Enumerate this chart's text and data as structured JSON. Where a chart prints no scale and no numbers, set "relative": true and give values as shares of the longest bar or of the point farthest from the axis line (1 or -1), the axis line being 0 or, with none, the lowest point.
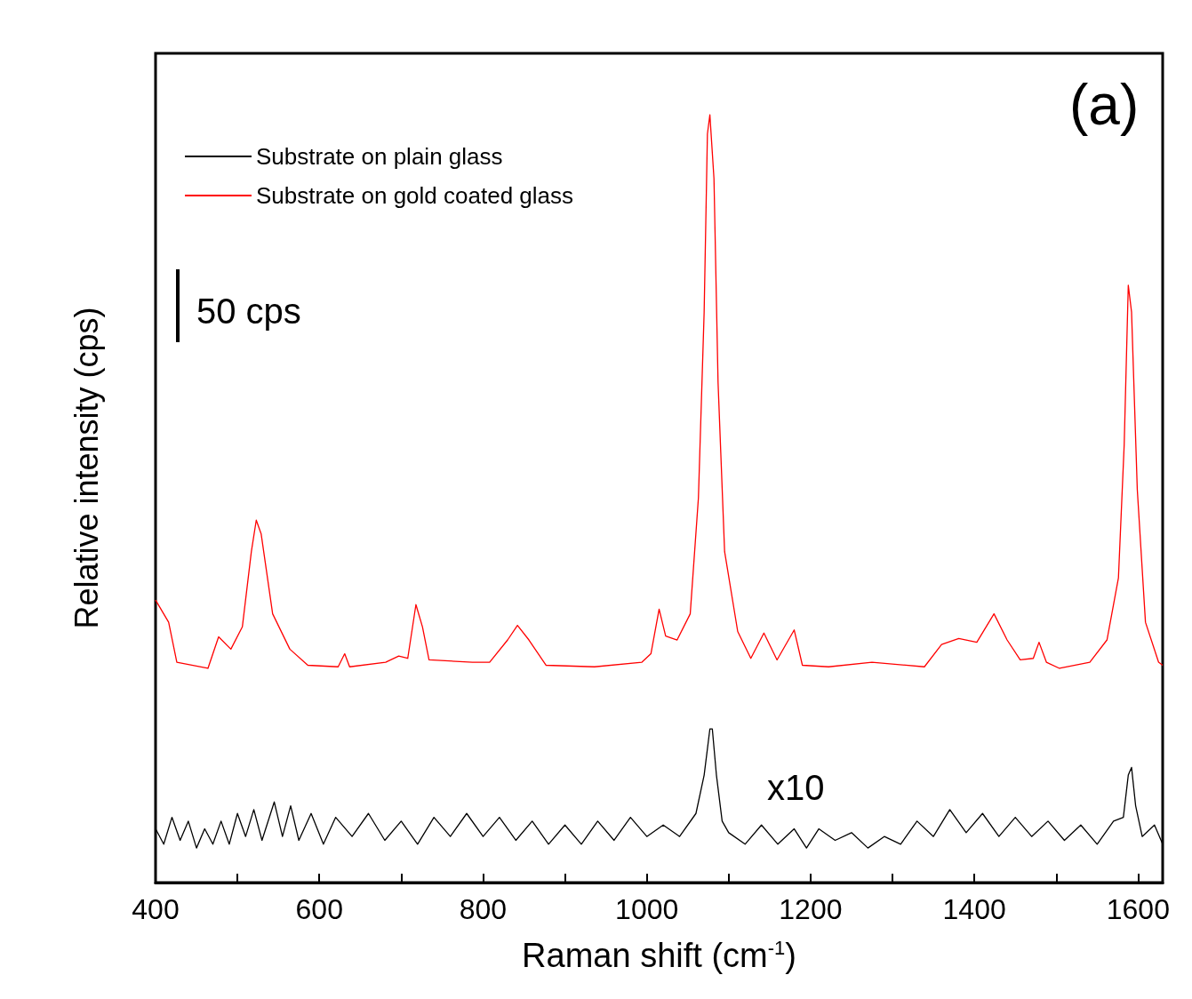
{
  "chart_data": {
    "type": "line",
    "relative": true,
    "xlabel": "Raman shift (cm$^{-1}$)",
    "ylabel": "Relative intensity (cps)",
    "xlim": [
      400,
      1630
    ],
    "xticks": [
      400,
      {
        "value": 500,
        "label": null
      },
      600,
      {
        "value": 700,
        "label": null
      },
      800,
      {
        "value": 900,
        "label": null
      },
      1000,
      {
        "value": 1100,
        "label": null
      },
      1200,
      {
        "value": 1300,
        "label": null
      },
      1400,
      {
        "value": 1500,
        "label": null
      },
      1600
    ],
    "legend": "top left",
    "grid": false,
    "marker": "none",
    "line_style": "solid",
    "annotations": [
      "50 cps",
      "x10",
      "(a)"
    ],
    "series": [
      {
        "name": "Substrate on plain glass",
        "color": "#000000",
        "x": [
          400,
          410,
          420,
          430,
          440,
          450,
          460,
          470,
          480,
          490,
          500,
          510,
          520,
          530,
          545,
          555,
          565,
          575,
          590,
          605,
          620,
          640,
          660,
          680,
          700,
          720,
          740,
          760,
          780,
          800,
          820,
          840,
          860,
          880,
          900,
          920,
          940,
          960,
          980,
          1000,
          1020,
          1040,
          1060,
          1070,
          1077,
          1080,
          1085,
          1092,
          1100,
          1120,
          1140,
          1160,
          1180,
          1195,
          1210,
          1230,
          1250,
          1270,
          1290,
          1310,
          1330,
          1350,
          1370,
          1390,
          1410,
          1430,
          1450,
          1470,
          1490,
          1510,
          1530,
          1550,
          1570,
          1582,
          1588,
          1592,
          1597,
          1605,
          1620,
          1630
        ],
        "values": [
          0.07,
          0.05,
          0.085,
          0.055,
          0.08,
          0.045,
          0.07,
          0.05,
          0.08,
          0.05,
          0.09,
          0.06,
          0.095,
          0.055,
          0.105,
          0.06,
          0.1,
          0.055,
          0.09,
          0.05,
          0.085,
          0.06,
          0.09,
          0.055,
          0.08,
          0.05,
          0.085,
          0.06,
          0.09,
          0.06,
          0.085,
          0.055,
          0.08,
          0.05,
          0.075,
          0.05,
          0.08,
          0.055,
          0.085,
          0.06,
          0.075,
          0.06,
          0.09,
          0.14,
          0.2,
          0.2,
          0.14,
          0.08,
          0.065,
          0.05,
          0.075,
          0.05,
          0.07,
          0.045,
          0.07,
          0.055,
          0.065,
          0.045,
          0.06,
          0.05,
          0.08,
          0.06,
          0.095,
          0.065,
          0.09,
          0.06,
          0.085,
          0.06,
          0.08,
          0.055,
          0.075,
          0.05,
          0.08,
          0.085,
          0.14,
          0.15,
          0.1,
          0.06,
          0.075,
          0.05
        ]
      },
      {
        "name": "Substrate on gold coated glass",
        "color": "#ff0000",
        "x": [
          400,
          416,
          426,
          464,
          477,
          492,
          506,
          517,
          523,
          529,
          543,
          564,
          586,
          623,
          631,
          637,
          681,
          697,
          708,
          718,
          726,
          734,
          787,
          808,
          830,
          842,
          856,
          877,
          936,
          994,
          1005,
          1015,
          1023,
          1037,
          1053,
          1063,
          1070,
          1074,
          1077,
          1082,
          1087,
          1095,
          1111,
          1127,
          1143,
          1159,
          1180,
          1190,
          1222,
          1275,
          1339,
          1360,
          1381,
          1403,
          1424,
          1440,
          1456,
          1472,
          1479,
          1488,
          1504,
          1541,
          1562,
          1576,
          1583,
          1588,
          1592,
          1599,
          1609,
          1625,
          1630
        ],
        "values": [
          0.368,
          0.339,
          0.287,
          0.279,
          0.32,
          0.304,
          0.333,
          0.431,
          0.472,
          0.454,
          0.35,
          0.304,
          0.283,
          0.281,
          0.298,
          0.281,
          0.287,
          0.295,
          0.292,
          0.362,
          0.333,
          0.29,
          0.287,
          0.287,
          0.316,
          0.335,
          0.316,
          0.283,
          0.281,
          0.287,
          0.298,
          0.356,
          0.321,
          0.316,
          0.35,
          0.501,
          0.743,
          0.975,
          1,
          0.917,
          0.651,
          0.431,
          0.327,
          0.292,
          0.325,
          0.29,
          0.329,
          0.283,
          0.281,
          0.287,
          0.281,
          0.31,
          0.318,
          0.313,
          0.35,
          0.316,
          0.29,
          0.292,
          0.313,
          0.287,
          0.279,
          0.287,
          0.316,
          0.397,
          0.57,
          0.778,
          0.743,
          0.512,
          0.339,
          0.287,
          0.283
        ]
      }
    ]
  }
}
